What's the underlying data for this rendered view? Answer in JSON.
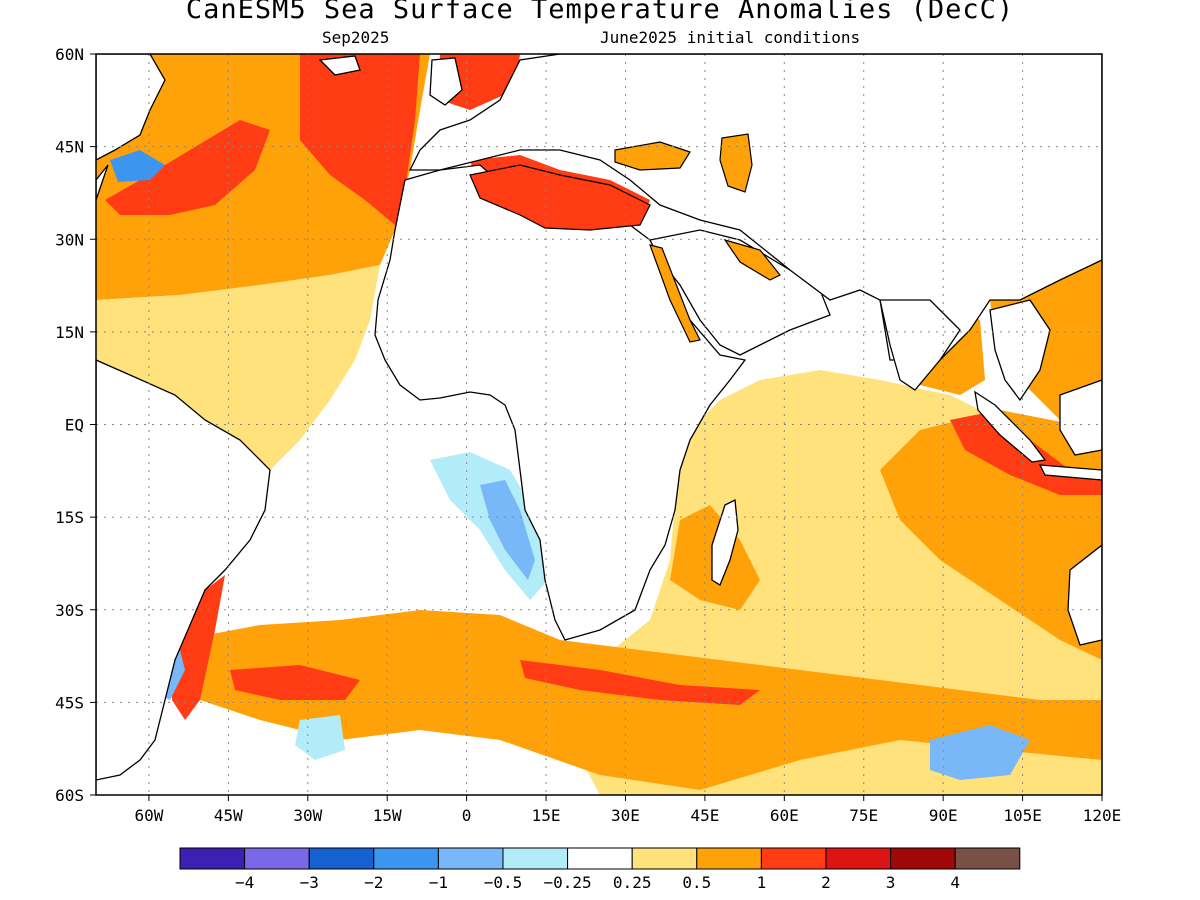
{
  "title": "CanESM5 Sea Surface Temperature Anomalies (DecC)",
  "subtitle_left": "Sep2025",
  "subtitle_right": "June2025 initial conditions",
  "map": {
    "lon_range": [
      -70,
      120
    ],
    "lat_range": [
      -60,
      60
    ],
    "lat_ticks": [
      "60N",
      "45N",
      "30N",
      "15N",
      "EQ",
      "15S",
      "30S",
      "45S",
      "60S"
    ],
    "lon_ticks": [
      "60W",
      "45W",
      "30W",
      "15W",
      "0",
      "15E",
      "30E",
      "45E",
      "60E",
      "75E",
      "90E",
      "105E",
      "120E"
    ],
    "gridlines": "dotted",
    "land_color": "#ffffff",
    "coastline_color": "#000000"
  },
  "colorbar": {
    "colors": [
      "#3c20b4",
      "#7a68e6",
      "#1660d2",
      "#3c96f0",
      "#78b8f8",
      "#b2ecf8",
      "#ffffff",
      "#ffe27c",
      "#ffa20a",
      "#ff3c14",
      "#de1414",
      "#a00808",
      "#785046"
    ],
    "labels": [
      "−4",
      "−3",
      "−2",
      "−1",
      "−0.5",
      "−0.25",
      "0.25",
      "0.5",
      "1",
      "2",
      "3",
      "4"
    ]
  },
  "anomaly_levels": {
    "neutral": "#ffffff",
    "w025": "#ffe27c",
    "w05": "#ffa20a",
    "w1": "#ff3c14",
    "w2": "#de1414",
    "c025": "#b2ecf8",
    "c05": "#78b8f8",
    "c1": "#3c96f0",
    "c2": "#1660d2"
  }
}
